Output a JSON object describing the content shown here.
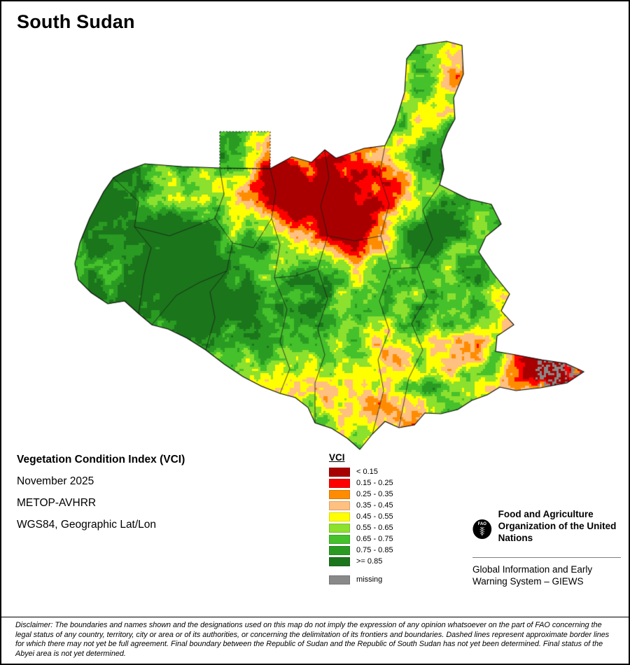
{
  "page": {
    "title": "South Sudan"
  },
  "info": {
    "product": "Vegetation Condition Index (VCI)",
    "date": "November 2025",
    "sensor": "METOP-AVHRR",
    "projection": "WGS84, Geographic Lat/Lon"
  },
  "legend": {
    "title": "VCI",
    "items": [
      {
        "label": "< 0.15",
        "color": "#a80000"
      },
      {
        "label": "0.15 - 0.25",
        "color": "#ff0000"
      },
      {
        "label": "0.25 - 0.35",
        "color": "#ff8c00"
      },
      {
        "label": "0.35 - 0.45",
        "color": "#ffc080"
      },
      {
        "label": "0.45 - 0.55",
        "color": "#ffff00"
      },
      {
        "label": "0.55 - 0.65",
        "color": "#8ce02e"
      },
      {
        "label": "0.65 - 0.75",
        "color": "#45c12b"
      },
      {
        "label": "0.75 - 0.85",
        "color": "#2a9b22"
      },
      {
        "label": ">= 0.85",
        "color": "#1b751b"
      }
    ],
    "missing": {
      "label": "missing",
      "color": "#898989"
    }
  },
  "fao": {
    "logo_text": "FAO",
    "org_name": "Food and Agriculture Organization of the United Nations",
    "system_name": "Global Information and Early Warning System – GIEWS"
  },
  "disclaimer": "Disclaimer: The boundaries and names shown and the designations used on this map do not imply the expression of any opinion whatsoever on the part of FAO concerning the legal status of any country, territory, city or area or of its authorities, or concerning the delimitation of its frontiers and boundaries. Dashed lines represent approximate border lines for which there may not yet be full agreement. Final boundary between the Republic of Sudan and the Republic of South Sudan has not yet been determined. Final status of the Abyei area is not yet determined."
}
